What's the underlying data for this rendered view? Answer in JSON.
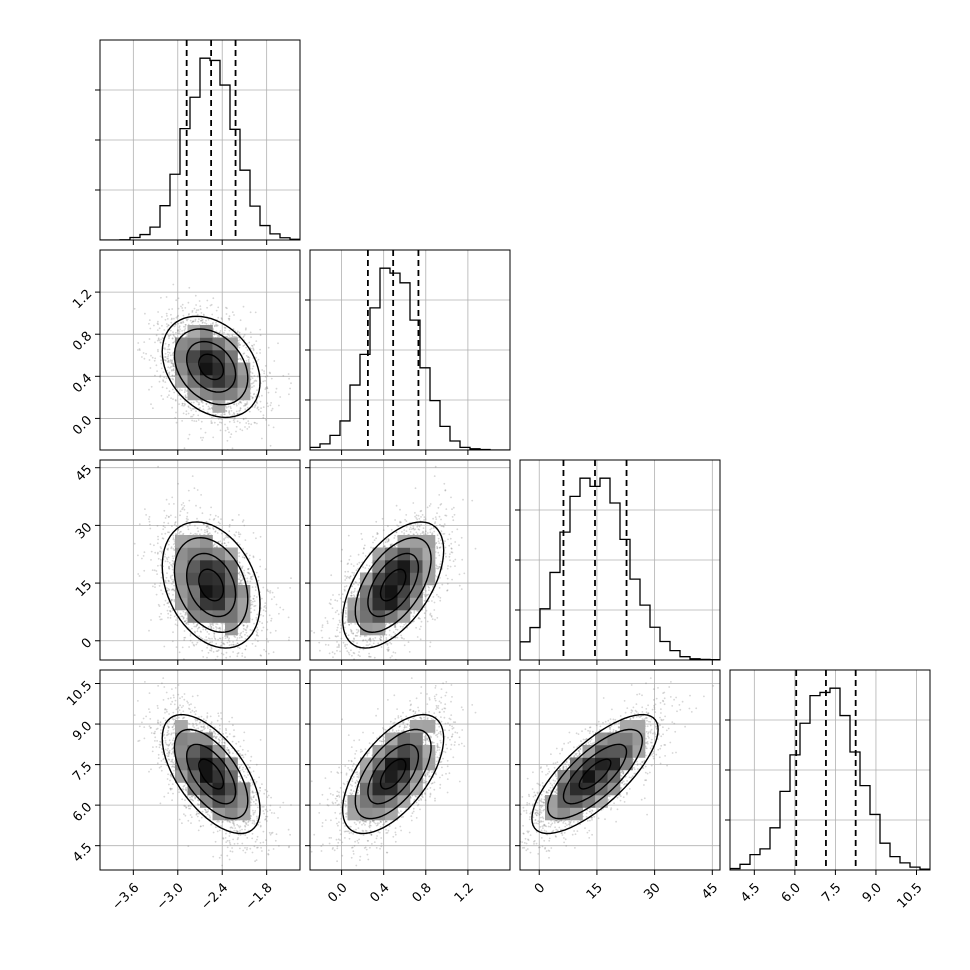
{
  "chart_data": {
    "type": "corner",
    "grid": true,
    "params": [
      {
        "range": [
          -4.05,
          -1.35
        ],
        "ticks": [
          -3.6,
          -3.0,
          -2.4,
          -1.8
        ],
        "tick_labels": [
          "−3.6",
          "−3.0",
          "−2.4",
          "−1.8"
        ],
        "mean": -2.55,
        "sd": 0.33,
        "quantiles": [
          -2.88,
          -2.55,
          -2.22
        ]
      },
      {
        "range": [
          -0.3,
          1.6
        ],
        "ticks": [
          0.0,
          0.4,
          0.8,
          1.2
        ],
        "tick_labels": [
          "0.0",
          "0.4",
          "0.8",
          "1.2"
        ],
        "mean": 0.49,
        "sd": 0.24,
        "quantiles": [
          0.25,
          0.49,
          0.73
        ]
      },
      {
        "range": [
          -5,
          47
        ],
        "ticks": [
          0,
          15,
          30,
          45
        ],
        "tick_labels": [
          "0",
          "15",
          "30",
          "45"
        ],
        "mean": 14.5,
        "sd": 8.2,
        "quantiles": [
          6.3,
          14.5,
          22.7
        ]
      },
      {
        "range": [
          3.6,
          11.0
        ],
        "ticks": [
          4.5,
          6.0,
          7.5,
          9.0,
          10.5
        ],
        "tick_labels": [
          "4.5",
          "6.0",
          "7.5",
          "9.0",
          "10.5"
        ],
        "mean": 7.15,
        "sd": 1.1,
        "quantiles": [
          6.05,
          7.15,
          8.25
        ]
      }
    ],
    "correlations": [
      [
        1.0,
        -0.3,
        -0.3,
        -0.6
      ],
      [
        -0.3,
        1.0,
        0.55,
        0.6
      ],
      [
        -0.3,
        0.55,
        1.0,
        0.75
      ],
      [
        -0.6,
        0.6,
        0.75,
        1.0
      ]
    ],
    "histogram_bins": 20,
    "contour_levels": 3,
    "samples": 5000,
    "quantile_levels": [
      0.16,
      0.5,
      0.84
    ],
    "colors": {
      "axis": "#000000",
      "grid": "#b0b0b0",
      "scatter": "#777777",
      "contour": "#000000"
    }
  }
}
